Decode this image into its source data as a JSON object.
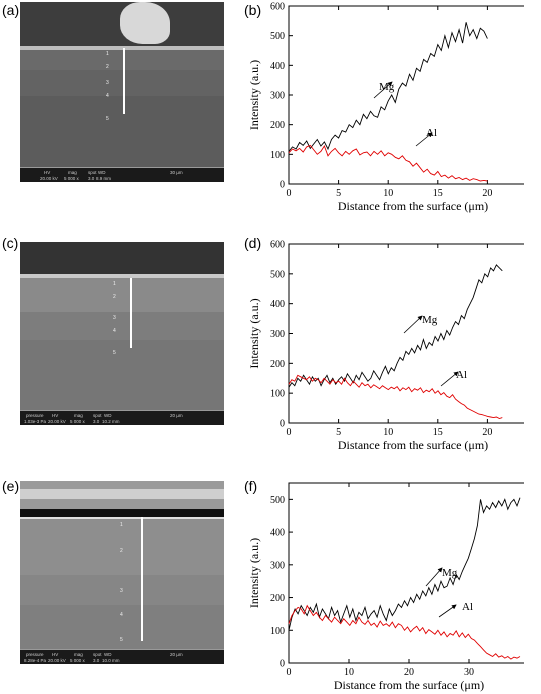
{
  "panels": {
    "a": "(a)",
    "b": "(b)",
    "c": "(c)",
    "d": "(d)",
    "e": "(e)",
    "f": "(f)"
  },
  "sem_images": [
    {
      "points": [
        "1",
        "2",
        "3",
        "4",
        "5"
      ],
      "bar": {
        "c1": "HV",
        "c2": "mag",
        "c3": "spot",
        "c4": "WD",
        "v1": "20.00 kV",
        "v2": "5 000 x",
        "v3": "3.0",
        "v4": "8.9 mm",
        "scale": "30 µm"
      }
    },
    {
      "points": [
        "1",
        "2",
        "3",
        "4",
        "5"
      ],
      "bar": {
        "c0": "pressure",
        "c1": "HV",
        "c2": "mag",
        "c3": "spot",
        "c4": "WD",
        "v0": "1.03e-3 Pa",
        "v1": "20.00 kV",
        "v2": "5 000 x",
        "v3": "3.0",
        "v4": "10.2 mm",
        "scale": "20 µm"
      }
    },
    {
      "points": [
        "1",
        "2",
        "3",
        "4",
        "5"
      ],
      "bar": {
        "c0": "pressure",
        "c1": "HV",
        "c2": "mag",
        "c3": "spot",
        "c4": "WD",
        "v0": "8.28e-4 Pa",
        "v1": "20.00 kV",
        "v2": "5 000 x",
        "v3": "3.0",
        "v4": "10.0 mm",
        "scale": "20 µm"
      }
    }
  ],
  "chart_data": [
    {
      "type": "line",
      "panel": "b",
      "xlabel": "Distance from the surface (μm)",
      "ylabel": "Intensity (a.u.)",
      "xlim": [
        0,
        25
      ],
      "ylim": [
        0,
        600
      ],
      "xticks": [
        0,
        5,
        10,
        15,
        20,
        25
      ],
      "yticks": [
        0,
        100,
        200,
        300,
        400,
        500,
        600
      ],
      "series": [
        {
          "name": "Mg",
          "color": "#000000",
          "x_end": 20,
          "values": [
            110,
            125,
            118,
            140,
            130,
            145,
            120,
            135,
            150,
            128,
            142,
            118,
            150,
            165,
            155,
            180,
            175,
            200,
            190,
            215,
            200,
            235,
            220,
            245,
            230,
            225,
            260,
            250,
            280,
            300,
            275,
            320,
            340,
            330,
            370,
            350,
            390,
            380,
            420,
            410,
            440,
            430,
            470,
            450,
            500,
            460,
            510,
            480,
            520,
            475,
            545,
            500,
            520,
            490,
            525,
            515,
            490
          ]
        },
        {
          "name": "Al",
          "color": "#e00000",
          "x_end": 20,
          "values": [
            105,
            118,
            112,
            120,
            108,
            125,
            130,
            115,
            100,
            110,
            128,
            95,
            110,
            120,
            105,
            95,
            110,
            100,
            112,
            118,
            98,
            105,
            108,
            95,
            110,
            100,
            112,
            95,
            105,
            100,
            90,
            85,
            95,
            80,
            75,
            60,
            70,
            55,
            40,
            50,
            35,
            30,
            42,
            25,
            30,
            20,
            28,
            18,
            22,
            15,
            20,
            12,
            18,
            15,
            10,
            12,
            10
          ]
        }
      ],
      "annotations": [
        {
          "text": "Mg"
        },
        {
          "text": "Al"
        }
      ]
    },
    {
      "type": "line",
      "panel": "d",
      "xlabel": "Distance from the surface (μm)",
      "ylabel": "Intensity (a.u.)",
      "xlim": [
        0,
        25
      ],
      "ylim": [
        0,
        600
      ],
      "xticks": [
        0,
        5,
        10,
        15,
        20,
        25
      ],
      "yticks": [
        0,
        100,
        200,
        300,
        400,
        500,
        600
      ],
      "series": [
        {
          "name": "Mg",
          "color": "#000000",
          "x_end": 21.5,
          "values": [
            120,
            135,
            125,
            150,
            140,
            160,
            145,
            130,
            155,
            140,
            150,
            125,
            145,
            160,
            135,
            150,
            130,
            145,
            155,
            140,
            165,
            150,
            135,
            160,
            145,
            170,
            155,
            140,
            150,
            175,
            160,
            145,
            170,
            190,
            165,
            185,
            175,
            200,
            220,
            210,
            240,
            230,
            250,
            235,
            260,
            245,
            280,
            250,
            270,
            260,
            290,
            275,
            300,
            280,
            310,
            295,
            320,
            340,
            330,
            360,
            350,
            380,
            400,
            420,
            450,
            480,
            470,
            500,
            490,
            520,
            510,
            530,
            520,
            510
          ]
        },
        {
          "name": "Al",
          "color": "#e00000",
          "x_end": 21.5,
          "values": [
            130,
            145,
            140,
            160,
            155,
            150,
            145,
            155,
            140,
            150,
            145,
            135,
            150,
            140,
            130,
            145,
            135,
            140,
            130,
            150,
            135,
            125,
            140,
            130,
            120,
            135,
            125,
            130,
            118,
            128,
            122,
            115,
            125,
            118,
            112,
            120,
            115,
            122,
            108,
            118,
            112,
            120,
            105,
            115,
            110,
            118,
            102,
            110,
            105,
            115,
            100,
            108,
            95,
            102,
            90,
            85,
            95,
            80,
            72,
            65,
            60,
            50,
            45,
            40,
            35,
            30,
            28,
            25,
            22,
            20,
            18,
            20,
            15,
            18
          ]
        }
      ],
      "annotations": [
        {
          "text": "Mg"
        },
        {
          "text": "Al"
        }
      ]
    },
    {
      "type": "line",
      "panel": "f",
      "xlabel": "Distance from the surface (μm)",
      "ylabel": "Intensity (a.u.)",
      "xlim": [
        0,
        40
      ],
      "ylim": [
        0,
        550
      ],
      "xticks": [
        0,
        10,
        20,
        30,
        40
      ],
      "yticks": [
        0,
        100,
        200,
        300,
        400,
        500
      ],
      "series": [
        {
          "name": "Mg",
          "color": "#000000",
          "x_end": 38.5,
          "values": [
            100,
            140,
            165,
            150,
            175,
            160,
            145,
            170,
            155,
            180,
            140,
            165,
            150,
            135,
            170,
            145,
            160,
            125,
            150,
            175,
            140,
            165,
            130,
            155,
            145,
            170,
            135,
            150,
            160,
            140,
            175,
            150,
            130,
            165,
            145,
            160,
            180,
            170,
            190,
            175,
            200,
            185,
            210,
            195,
            220,
            205,
            230,
            210,
            240,
            220,
            250,
            230,
            235,
            260,
            240,
            270,
            255,
            280,
            300,
            320,
            350,
            380,
            420,
            500,
            460,
            480,
            470,
            490,
            475,
            495,
            480,
            500,
            470,
            490,
            500,
            480,
            505
          ]
        },
        {
          "name": "Al",
          "color": "#e00000",
          "x_end": 38.5,
          "values": [
            120,
            145,
            160,
            170,
            165,
            150,
            175,
            160,
            145,
            155,
            140,
            130,
            145,
            135,
            125,
            140,
            130,
            120,
            135,
            125,
            115,
            130,
            120,
            140,
            125,
            118,
            130,
            115,
            122,
            110,
            128,
            115,
            120,
            112,
            125,
            108,
            120,
            115,
            100,
            110,
            95,
            105,
            112,
            98,
            108,
            90,
            102,
            95,
            88,
            100,
            85,
            95,
            80,
            90,
            85,
            98,
            80,
            92,
            78,
            88,
            75,
            70,
            60,
            50,
            40,
            30,
            25,
            20,
            28,
            18,
            22,
            15,
            20,
            12,
            18,
            15,
            20
          ]
        }
      ],
      "annotations": [
        {
          "text": "Mg"
        },
        {
          "text": "Al"
        }
      ]
    }
  ]
}
